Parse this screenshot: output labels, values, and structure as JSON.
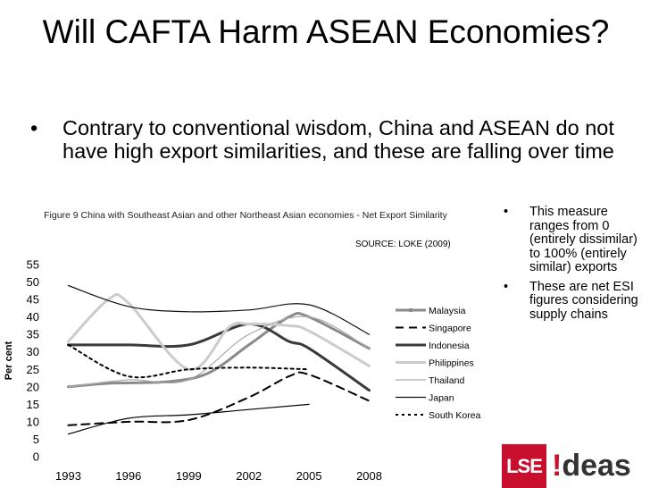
{
  "slide": {
    "title": "Will CAFTA Harm ASEAN Economies?",
    "bullet": "Contrary to conventional wisdom, China and ASEAN do not have high export similarities, and these are falling over time",
    "side_bullets": [
      "This measure ranges from 0 (entirely dissimilar) to 100% (entirely similar) exports",
      "These are net ESI figures considering supply chains"
    ],
    "source": "SOURCE: LOKE (2009)",
    "logo": {
      "lse": "LSE",
      "bang": "!",
      "ideas": "deas",
      "color": "#c8102e"
    }
  },
  "chart_data": {
    "type": "line",
    "title": "Figure 9 China with Southeast Asian and other Northeast Asian economies - Net Export Similarity",
    "xlabel": "",
    "ylabel": "Per cent",
    "x": [
      1993,
      1996,
      1999,
      2002,
      2005,
      2008
    ],
    "xlim": [
      1992,
      2009
    ],
    "ylim": [
      0,
      55
    ],
    "yticks": [
      0,
      5,
      10,
      15,
      20,
      25,
      30,
      35,
      40,
      45,
      50,
      55
    ],
    "grid": false,
    "legend_position": "right",
    "series": [
      {
        "name": "Malaysia",
        "style": "solid-marker",
        "color": "#8a8a8a",
        "width": 3,
        "points": [
          [
            1993,
            20
          ],
          [
            1995,
            21
          ],
          [
            1998,
            21.5
          ],
          [
            2000,
            24
          ],
          [
            2002,
            32
          ],
          [
            2004,
            40
          ],
          [
            2005,
            40
          ],
          [
            2008,
            31
          ]
        ]
      },
      {
        "name": "Singapore",
        "style": "dashed",
        "color": "#000000",
        "width": 2,
        "points": [
          [
            1993,
            9
          ],
          [
            1996,
            10
          ],
          [
            1999,
            10.5
          ],
          [
            2002,
            17
          ],
          [
            2004,
            23
          ],
          [
            2005,
            23.5
          ],
          [
            2008,
            16
          ]
        ]
      },
      {
        "name": "Indonesia",
        "style": "solid",
        "color": "#3a3a3a",
        "width": 3,
        "points": [
          [
            1993,
            32
          ],
          [
            1996,
            32
          ],
          [
            1999,
            32
          ],
          [
            2002,
            38
          ],
          [
            2004,
            33
          ],
          [
            2005,
            31
          ],
          [
            2008,
            19
          ]
        ]
      },
      {
        "name": "Philippines",
        "style": "solid",
        "color": "#cccccc",
        "width": 3,
        "points": [
          [
            1993,
            33
          ],
          [
            1995,
            45
          ],
          [
            1996,
            44
          ],
          [
            1999,
            25
          ],
          [
            2001,
            37
          ],
          [
            2002,
            38
          ],
          [
            2004,
            37.5
          ],
          [
            2005,
            36
          ],
          [
            2008,
            26
          ]
        ]
      },
      {
        "name": "Thailand",
        "style": "solid",
        "color": "#aaaaaa",
        "width": 1.2,
        "points": [
          [
            1993,
            20
          ],
          [
            1996,
            22
          ],
          [
            1999,
            22
          ],
          [
            2002,
            35
          ],
          [
            2005,
            40
          ],
          [
            2008,
            31
          ]
        ]
      },
      {
        "name": "Japan",
        "style": "solid",
        "color": "#111111",
        "width": 1.2,
        "points": [
          [
            1993,
            49
          ],
          [
            1996,
            43
          ],
          [
            1999,
            41.5
          ],
          [
            2002,
            42
          ],
          [
            2005,
            43.5
          ],
          [
            2008,
            35
          ]
        ]
      },
      {
        "name": "South Korea",
        "style": "dotted",
        "color": "#000000",
        "width": 2,
        "points": [
          [
            1993,
            32
          ],
          [
            1996,
            23
          ],
          [
            1999,
            25
          ],
          [
            2002,
            25.5
          ],
          [
            2005,
            25
          ]
        ]
      }
    ],
    "extra_line": {
      "note": "unlabeled thin black line",
      "color": "#000000",
      "width": 1.2,
      "points": [
        [
          1993,
          6.5
        ],
        [
          1996,
          11
        ],
        [
          1999,
          12
        ],
        [
          2002,
          13.5
        ],
        [
          2005,
          15
        ]
      ]
    }
  }
}
